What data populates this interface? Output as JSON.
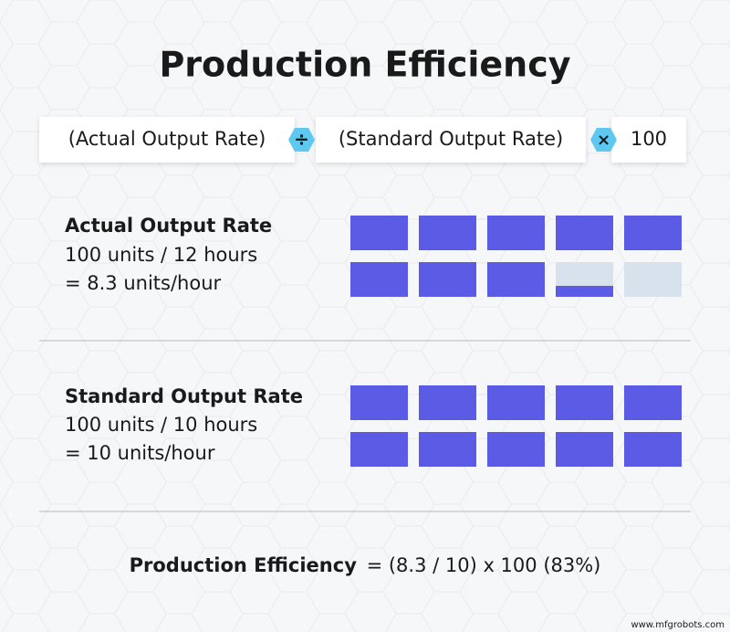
{
  "title": "Production Efficiency",
  "formula": {
    "terms": [
      "(Actual Output Rate)",
      "(Standard Output Rate)",
      "100"
    ],
    "operators": [
      "÷",
      "×"
    ]
  },
  "sections": [
    {
      "heading": "Actual Output Rate",
      "lines": [
        "100 units / 12 hours",
        "= 8.3 units/hour"
      ]
    },
    {
      "heading": "Standard Output Rate",
      "lines": [
        "100 units / 10 hours",
        "= 10 units/hour"
      ]
    }
  ],
  "result": {
    "label": "Production Efficiency",
    "expression": "= (8.3 / 10) x 100 (83%)"
  },
  "watermark": "www.mfgrobots.com"
}
